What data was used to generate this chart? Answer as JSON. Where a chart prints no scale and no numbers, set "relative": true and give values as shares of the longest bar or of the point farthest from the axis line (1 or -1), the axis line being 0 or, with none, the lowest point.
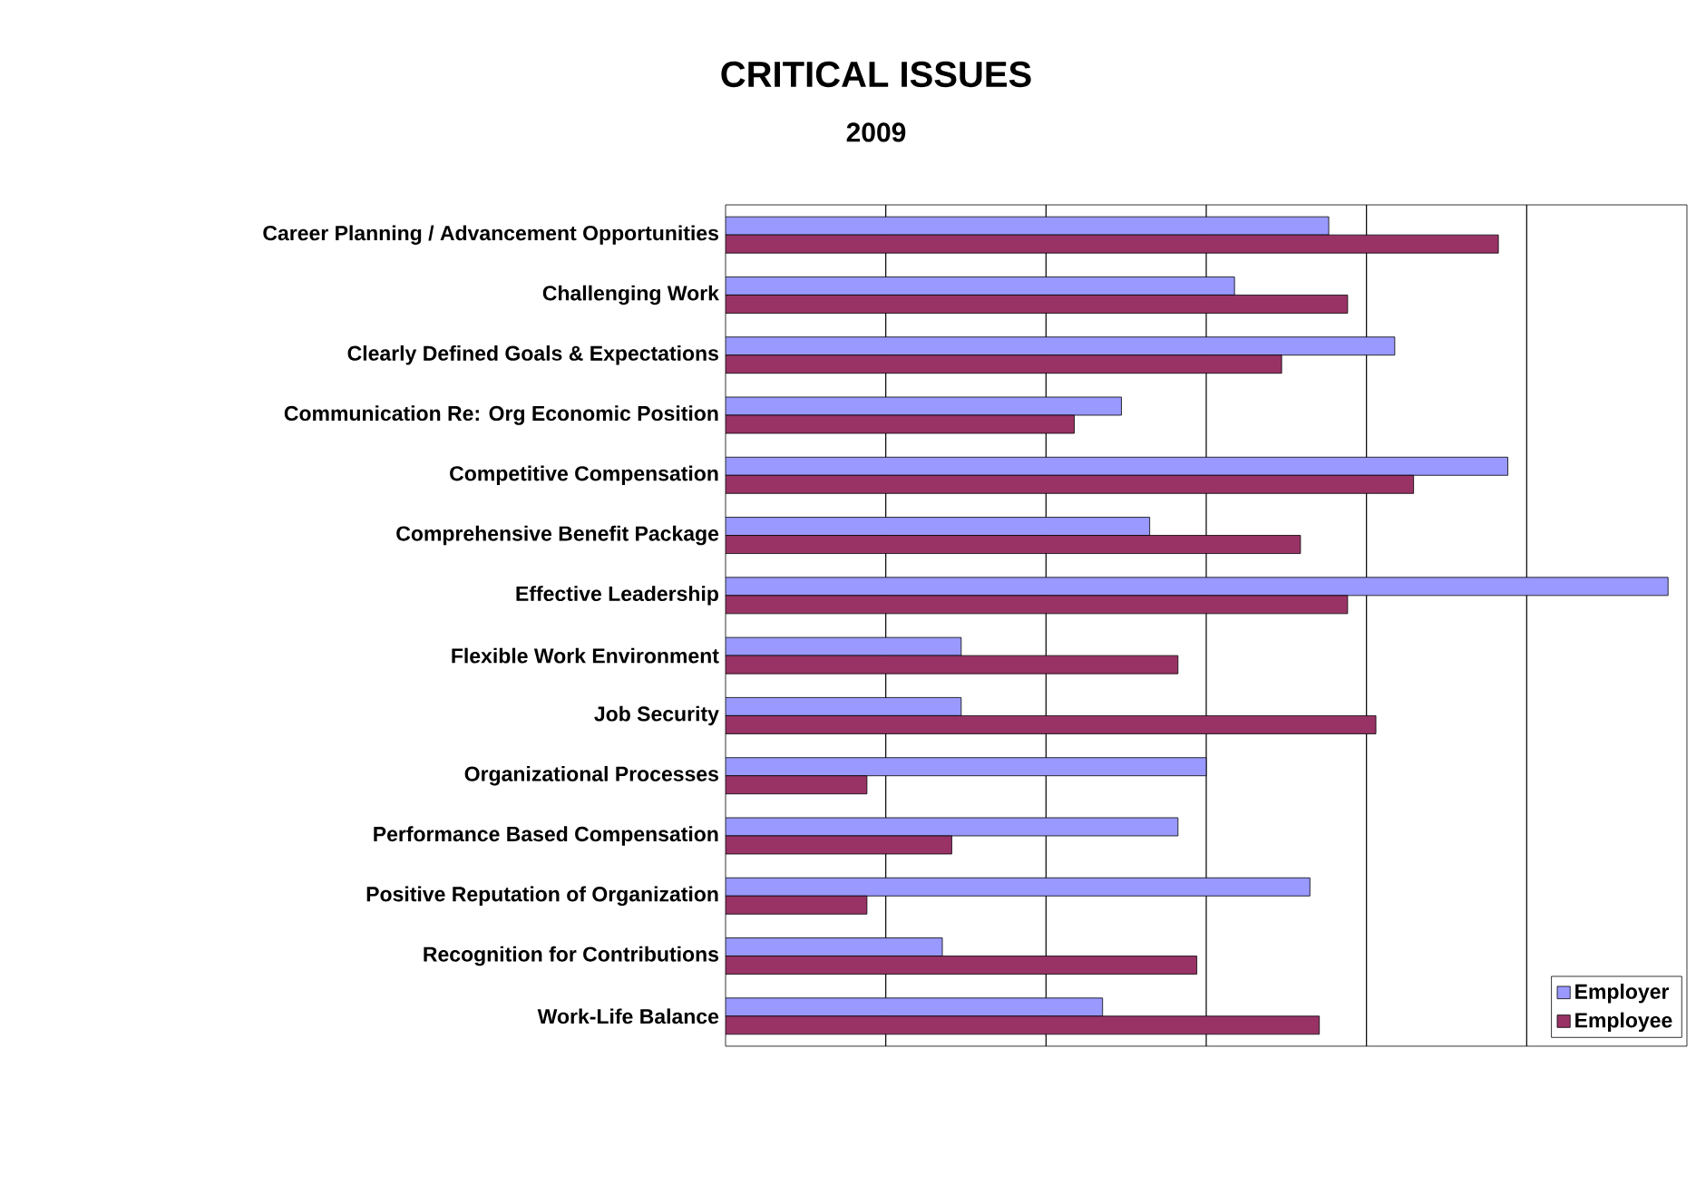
{
  "chart_data": {
    "type": "bar",
    "orientation": "horizontal",
    "relative": true,
    "title": "CRITICAL ISSUES",
    "subtitle": "2009",
    "categories": [
      "Career Planning / Advancement Opportunities",
      "Challenging Work",
      "Clearly Defined Goals & Expectations",
      "Communication Re: Org Economic Position",
      "Competitive Compensation",
      "Comprehensive Benefit Package",
      "Effective Leadership",
      "Flexible Work Environment",
      "Job Security",
      "Organizational Processes",
      "Performance Based Compensation",
      "Positive Reputation of Organization",
      "Recognition for Contributions",
      "Work-Life Balance"
    ],
    "series": [
      {
        "name": "Employer",
        "color": "#9999ff",
        "values": [
          0.64,
          0.54,
          0.71,
          0.42,
          0.83,
          0.45,
          1,
          0.25,
          0.25,
          0.51,
          0.48,
          0.62,
          0.23,
          0.4
        ]
      },
      {
        "name": "Employee",
        "color": "#993366",
        "values": [
          0.82,
          0.66,
          0.59,
          0.37,
          0.73,
          0.61,
          0.66,
          0.48,
          0.69,
          0.15,
          0.24,
          0.15,
          0.5,
          0.63
        ]
      }
    ],
    "grid": "x",
    "legend": "bottom right"
  }
}
